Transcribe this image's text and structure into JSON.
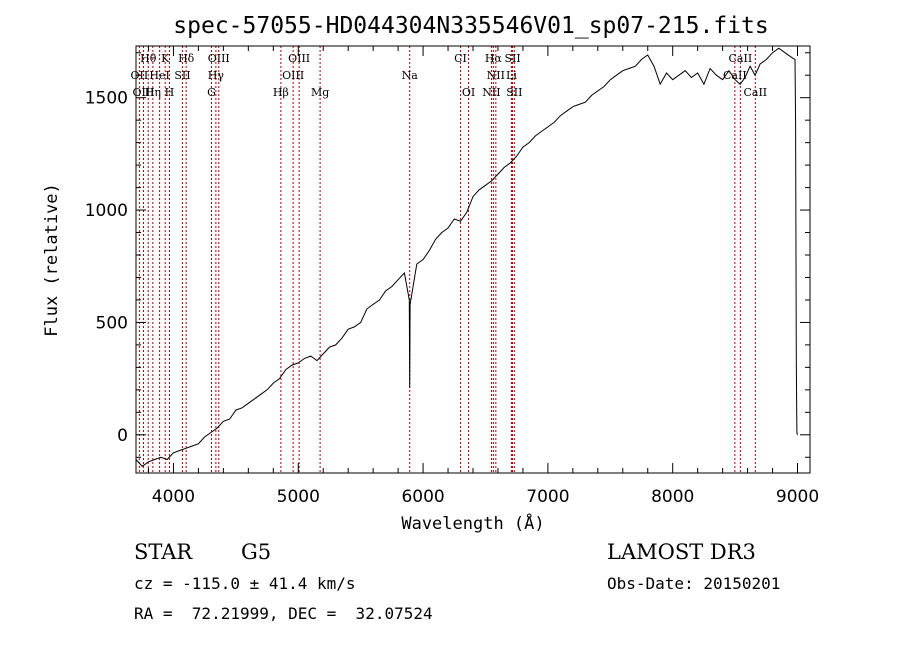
{
  "chart_data": {
    "type": "line",
    "title": "spec-57055-HD044304N335546V01_sp07-215.fits",
    "xlabel": "Wavelength (Å)",
    "ylabel": "Flux (relative)",
    "xlim": [
      3700,
      9100
    ],
    "ylim": [
      -170,
      1730
    ],
    "xticks": [
      4000,
      5000,
      6000,
      7000,
      8000,
      9000
    ],
    "yticks": [
      0,
      500,
      1000,
      1500
    ],
    "line_color": "#000000",
    "marker_color": "#aa0000",
    "spectral_lines": [
      {
        "label": "Hθ",
        "wavelength": 3798,
        "row": 0
      },
      {
        "label": "K",
        "wavelength": 3934,
        "row": 0
      },
      {
        "label": "Hδ",
        "wavelength": 4102,
        "row": 0
      },
      {
        "label": "OIII",
        "wavelength": 4363,
        "row": 0
      },
      {
        "label": "OIII",
        "wavelength": 5007,
        "row": 0
      },
      {
        "label": "CI",
        "wavelength": 6300,
        "row": 0
      },
      {
        "label": "Hα",
        "wavelength": 6563,
        "row": 0
      },
      {
        "label": "SII",
        "wavelength": 6717,
        "row": 0
      },
      {
        "label": "CaII",
        "wavelength": 8542,
        "row": 0
      },
      {
        "label": "OII",
        "wavelength": 3727,
        "row": 1
      },
      {
        "label": "HeI",
        "wavelength": 3889,
        "row": 1
      },
      {
        "label": "SII",
        "wavelength": 4072,
        "row": 1
      },
      {
        "label": "Hγ",
        "wavelength": 4340,
        "row": 1
      },
      {
        "label": "OIII",
        "wavelength": 4959,
        "row": 1
      },
      {
        "label": "Na",
        "wavelength": 5893,
        "row": 1
      },
      {
        "label": "NII",
        "wavelength": 6583,
        "row": 1
      },
      {
        "label": "Li",
        "wavelength": 6708,
        "row": 1
      },
      {
        "label": "CaII",
        "wavelength": 8498,
        "row": 1
      },
      {
        "label": "OIII",
        "wavelength": 3760,
        "row": 2
      },
      {
        "label": "Hη",
        "wavelength": 3835,
        "row": 2
      },
      {
        "label": "H",
        "wavelength": 3968,
        "row": 2
      },
      {
        "label": "G",
        "wavelength": 4305,
        "row": 2
      },
      {
        "label": "Hβ",
        "wavelength": 4861,
        "row": 2
      },
      {
        "label": "Mg",
        "wavelength": 5175,
        "row": 2
      },
      {
        "label": "OI",
        "wavelength": 6364,
        "row": 2
      },
      {
        "label": "NII",
        "wavelength": 6548,
        "row": 2
      },
      {
        "label": "SII",
        "wavelength": 6731,
        "row": 2
      },
      {
        "label": "CaII",
        "wavelength": 8662,
        "row": 2
      }
    ],
    "spectrum": [
      [
        3700,
        -110
      ],
      [
        3750,
        -140
      ],
      [
        3800,
        -120
      ],
      [
        3850,
        -110
      ],
      [
        3900,
        -100
      ],
      [
        3950,
        -110
      ],
      [
        4000,
        -80
      ],
      [
        4050,
        -70
      ],
      [
        4100,
        -60
      ],
      [
        4150,
        -50
      ],
      [
        4200,
        -40
      ],
      [
        4250,
        -10
      ],
      [
        4300,
        10
      ],
      [
        4350,
        30
      ],
      [
        4400,
        60
      ],
      [
        4450,
        70
      ],
      [
        4500,
        110
      ],
      [
        4550,
        120
      ],
      [
        4600,
        140
      ],
      [
        4650,
        160
      ],
      [
        4700,
        180
      ],
      [
        4750,
        200
      ],
      [
        4800,
        230
      ],
      [
        4850,
        250
      ],
      [
        4900,
        290
      ],
      [
        4950,
        310
      ],
      [
        5000,
        320
      ],
      [
        5050,
        340
      ],
      [
        5100,
        350
      ],
      [
        5150,
        330
      ],
      [
        5200,
        360
      ],
      [
        5250,
        390
      ],
      [
        5300,
        400
      ],
      [
        5350,
        430
      ],
      [
        5400,
        470
      ],
      [
        5450,
        480
      ],
      [
        5500,
        500
      ],
      [
        5550,
        560
      ],
      [
        5600,
        580
      ],
      [
        5650,
        600
      ],
      [
        5700,
        640
      ],
      [
        5750,
        660
      ],
      [
        5800,
        690
      ],
      [
        5850,
        720
      ],
      [
        5890,
        600
      ],
      [
        5893,
        210
      ],
      [
        5896,
        580
      ],
      [
        5950,
        760
      ],
      [
        6000,
        780
      ],
      [
        6050,
        820
      ],
      [
        6100,
        870
      ],
      [
        6150,
        900
      ],
      [
        6200,
        920
      ],
      [
        6250,
        960
      ],
      [
        6300,
        950
      ],
      [
        6350,
        990
      ],
      [
        6400,
        1060
      ],
      [
        6450,
        1090
      ],
      [
        6500,
        1110
      ],
      [
        6550,
        1130
      ],
      [
        6600,
        1160
      ],
      [
        6650,
        1190
      ],
      [
        6700,
        1210
      ],
      [
        6750,
        1240
      ],
      [
        6800,
        1280
      ],
      [
        6850,
        1300
      ],
      [
        6900,
        1330
      ],
      [
        6950,
        1350
      ],
      [
        7000,
        1370
      ],
      [
        7050,
        1390
      ],
      [
        7100,
        1420
      ],
      [
        7150,
        1440
      ],
      [
        7200,
        1460
      ],
      [
        7250,
        1470
      ],
      [
        7300,
        1480
      ],
      [
        7350,
        1510
      ],
      [
        7400,
        1530
      ],
      [
        7450,
        1550
      ],
      [
        7500,
        1580
      ],
      [
        7550,
        1600
      ],
      [
        7600,
        1620
      ],
      [
        7650,
        1630
      ],
      [
        7700,
        1640
      ],
      [
        7750,
        1670
      ],
      [
        7800,
        1690
      ],
      [
        7850,
        1640
      ],
      [
        7900,
        1560
      ],
      [
        7950,
        1610
      ],
      [
        8000,
        1580
      ],
      [
        8050,
        1600
      ],
      [
        8100,
        1620
      ],
      [
        8150,
        1590
      ],
      [
        8200,
        1610
      ],
      [
        8250,
        1560
      ],
      [
        8300,
        1630
      ],
      [
        8350,
        1600
      ],
      [
        8400,
        1580
      ],
      [
        8450,
        1620
      ],
      [
        8500,
        1580
      ],
      [
        8540,
        1560
      ],
      [
        8580,
        1590
      ],
      [
        8620,
        1640
      ],
      [
        8660,
        1600
      ],
      [
        8700,
        1650
      ],
      [
        8750,
        1670
      ],
      [
        8800,
        1700
      ],
      [
        8850,
        1720
      ],
      [
        8900,
        1700
      ],
      [
        8950,
        1680
      ],
      [
        8980,
        1670
      ],
      [
        8985,
        1390
      ],
      [
        8990,
        330
      ],
      [
        8995,
        10
      ],
      [
        9000,
        0
      ]
    ]
  },
  "info": {
    "object_class": "STAR",
    "subclass": "G5",
    "survey": "LAMOST DR3",
    "redshift_line": "cz = -115.0 ± 41.4 km/s",
    "obs_date": "Obs-Date: 20150201",
    "coordinates": "RA =  72.21999, DEC =  32.07524"
  }
}
